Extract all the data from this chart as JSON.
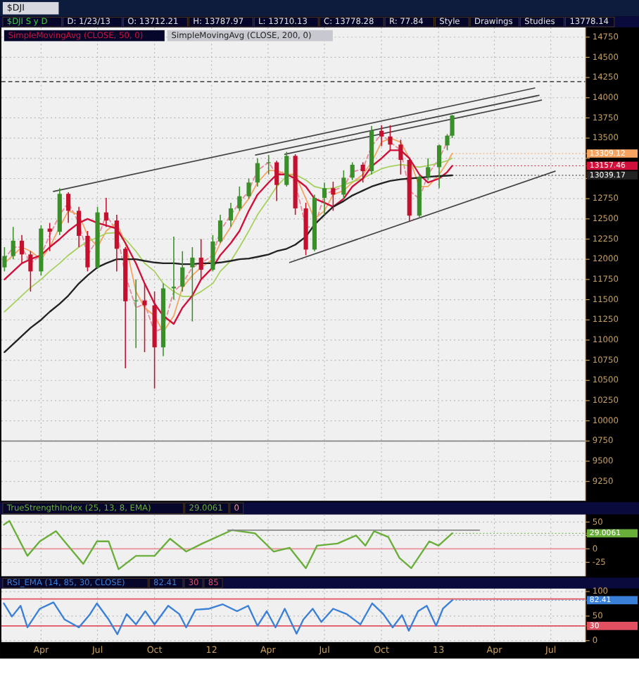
{
  "chart_data": [
    {
      "type": "candlestick",
      "title": "$DJI",
      "annotations": [
        "$DJI S y D",
        "D: 1/23/13",
        "O: 13712.21",
        "H: 13787.97",
        "L: 13710.13",
        "C: 13778.28",
        "R: 77.84",
        "Style",
        "Drawings",
        "Studies",
        "13778.14"
      ],
      "x": [
        "2011-02-01",
        "2011-02-15",
        "2011-03-01",
        "2011-03-15",
        "2011-04-01",
        "2011-04-15",
        "2011-05-01",
        "2011-05-15",
        "2011-06-01",
        "2011-06-15",
        "2011-07-01",
        "2011-07-15",
        "2011-08-01",
        "2011-08-15",
        "2011-09-01",
        "2011-09-15",
        "2011-10-01",
        "2011-10-15",
        "2011-11-01",
        "2011-11-15",
        "2011-12-01",
        "2011-12-15",
        "2012-01-03",
        "2012-01-15",
        "2012-02-01",
        "2012-02-15",
        "2012-03-01",
        "2012-03-15",
        "2012-04-02",
        "2012-04-15",
        "2012-05-01",
        "2012-05-15",
        "2012-06-01",
        "2012-06-15",
        "2012-07-01",
        "2012-07-15",
        "2012-08-01",
        "2012-08-15",
        "2012-09-01",
        "2012-09-15",
        "2012-10-01",
        "2012-10-15",
        "2012-11-01",
        "2012-11-15",
        "2012-12-01",
        "2012-12-15",
        "2013-01-02",
        "2013-01-15",
        "2013-01-23"
      ],
      "ohlc": [
        [
          11900,
          12150,
          11850,
          12040
        ],
        [
          12040,
          12400,
          12000,
          12230
        ],
        [
          12230,
          12300,
          11950,
          12060
        ],
        [
          12060,
          12100,
          11600,
          11850
        ],
        [
          11850,
          12420,
          11800,
          12380
        ],
        [
          12380,
          12450,
          12100,
          12340
        ],
        [
          12340,
          12880,
          12300,
          12810
        ],
        [
          12810,
          12830,
          12450,
          12600
        ],
        [
          12600,
          12650,
          12150,
          12290
        ],
        [
          12290,
          12350,
          11850,
          11900
        ],
        [
          11900,
          12650,
          11880,
          12580
        ],
        [
          12580,
          12760,
          12400,
          12480
        ],
        [
          12480,
          12550,
          11850,
          12130
        ],
        [
          12130,
          12150,
          10650,
          11480
        ],
        [
          11480,
          11750,
          10900,
          11490
        ],
        [
          11490,
          11700,
          10850,
          11430
        ],
        [
          11430,
          11600,
          10400,
          10910
        ],
        [
          10910,
          11700,
          10800,
          11640
        ],
        [
          11640,
          12280,
          11500,
          11660
        ],
        [
          11660,
          12100,
          11600,
          11900
        ],
        [
          11900,
          12150,
          11230,
          12020
        ],
        [
          12020,
          12250,
          11750,
          11870
        ],
        [
          11870,
          12300,
          11850,
          12220
        ],
        [
          12220,
          12550,
          12200,
          12480
        ],
        [
          12480,
          12700,
          12400,
          12630
        ],
        [
          12630,
          12900,
          12600,
          12780
        ],
        [
          12780,
          13000,
          12750,
          12950
        ],
        [
          12950,
          13250,
          12900,
          13190
        ],
        [
          13190,
          13290,
          13050,
          13200
        ],
        [
          13200,
          13220,
          12720,
          12920
        ],
        [
          12920,
          13330,
          12900,
          13280
        ],
        [
          13280,
          13300,
          12550,
          12630
        ],
        [
          12630,
          12700,
          12050,
          12120
        ],
        [
          12120,
          12800,
          12100,
          12760
        ],
        [
          12760,
          12950,
          12550,
          12880
        ],
        [
          12880,
          12960,
          12600,
          12800
        ],
        [
          12800,
          13100,
          12750,
          13010
        ],
        [
          13010,
          13200,
          12980,
          13170
        ],
        [
          13170,
          13200,
          12950,
          13090
        ],
        [
          13090,
          13650,
          13050,
          13590
        ],
        [
          13590,
          13660,
          13400,
          13520
        ],
        [
          13520,
          13660,
          13350,
          13420
        ],
        [
          13420,
          13480,
          13050,
          13230
        ],
        [
          13230,
          13260,
          12470,
          12540
        ],
        [
          12540,
          13050,
          12520,
          13020
        ],
        [
          13020,
          13250,
          12980,
          13140
        ],
        [
          13140,
          13420,
          12880,
          13410
        ],
        [
          13410,
          13550,
          13350,
          13530
        ],
        [
          13530,
          13788,
          13500,
          13780
        ]
      ],
      "colors": [
        "#3a8f2a",
        "#3a8f2a",
        "#c4102e",
        "#c4102e",
        "#3a8f2a",
        "#c4102e",
        "#3a8f2a",
        "#c4102e",
        "#c4102e",
        "#c4102e",
        "#3a8f2a",
        "#c4102e",
        "#c4102e",
        "#c4102e",
        "#3a8f2a",
        "#c4102e",
        "#c4102e",
        "#3a8f2a",
        "#3a8f2a",
        "#3a8f2a",
        "#3a8f2a",
        "#c4102e",
        "#3a8f2a",
        "#3a8f2a",
        "#3a8f2a",
        "#3a8f2a",
        "#3a8f2a",
        "#3a8f2a",
        "#3a8f2a",
        "#c4102e",
        "#3a8f2a",
        "#c4102e",
        "#c4102e",
        "#3a8f2a",
        "#3a8f2a",
        "#c4102e",
        "#3a8f2a",
        "#3a8f2a",
        "#c4102e",
        "#3a8f2a",
        "#c4102e",
        "#c4102e",
        "#c4102e",
        "#c4102e",
        "#3a8f2a",
        "#3a8f2a",
        "#3a8f2a",
        "#3a8f2a",
        "#3a8f2a"
      ],
      "series": [
        {
          "type": "line",
          "color": "#e88a9a",
          "line_style": "dashed",
          "values": [
            12000,
            12150,
            12150,
            11950,
            12050,
            12300,
            12550,
            12700,
            12450,
            12050,
            12250,
            12550,
            12350,
            11800,
            11400,
            11450,
            11100,
            11150,
            11600,
            11700,
            11900,
            11950,
            12050,
            12350,
            12550,
            12700,
            12850,
            13100,
            13200,
            13050,
            13100,
            12950,
            12400,
            12400,
            12800,
            12850,
            12900,
            13080,
            13120,
            13400,
            13550,
            13450,
            13350,
            12850,
            12750,
            13050,
            13250,
            13450,
            13600
          ]
        },
        {
          "type": "line",
          "color": "#f4a460",
          "values": [
            11950,
            12050,
            12150,
            12100,
            12000,
            12150,
            12400,
            12600,
            12550,
            12300,
            12150,
            12350,
            12450,
            12200,
            11600,
            11400,
            11300,
            11100,
            11300,
            11650,
            11800,
            11900,
            12000,
            12200,
            12400,
            12600,
            12750,
            12950,
            13100,
            13100,
            13050,
            13050,
            12750,
            12500,
            12600,
            12800,
            12850,
            12950,
            13050,
            13200,
            13450,
            13500,
            13450,
            13250,
            12900,
            12900,
            13050,
            13200,
            13309.12
          ],
          "value_labels": [
            null,
            null,
            null,
            null,
            null,
            null,
            null,
            null,
            null,
            null,
            null,
            null,
            null,
            null,
            null,
            null,
            null,
            null,
            null,
            null,
            null,
            null,
            null,
            null,
            null,
            null,
            null,
            null,
            null,
            null,
            null,
            null,
            null,
            null,
            null,
            null,
            null,
            null,
            null,
            null,
            null,
            null,
            null,
            null,
            null,
            null,
            null,
            null,
            "13309.12"
          ]
        },
        {
          "type": "line",
          "color": "#a6d05c",
          "values": [
            11350,
            11450,
            11550,
            11650,
            11750,
            11850,
            11950,
            12050,
            12150,
            12220,
            12270,
            12320,
            12330,
            12250,
            12100,
            11950,
            11850,
            11700,
            11600,
            11540,
            11540,
            11600,
            11700,
            11850,
            11980,
            12150,
            12350,
            12550,
            12750,
            12900,
            13030,
            13050,
            12980,
            12900,
            12870,
            12880,
            12920,
            12960,
            13000,
            13060,
            13120,
            13150,
            13170,
            13160,
            13140,
            13160,
            13190,
            13220,
            13250
          ]
        },
        {
          "type": "line",
          "name": "SimpleMovingAvg (CLOSE, 50, 0)",
          "color": "#d0103a",
          "values": [
            11750,
            11850,
            11950,
            12000,
            12050,
            12150,
            12250,
            12350,
            12450,
            12500,
            12450,
            12420,
            12380,
            12200,
            11950,
            11700,
            11450,
            11300,
            11200,
            11400,
            11550,
            11750,
            11900,
            12050,
            12200,
            12350,
            12600,
            12800,
            12950,
            13050,
            13050,
            13000,
            12900,
            12750,
            12700,
            12650,
            12750,
            12900,
            13000,
            13150,
            13250,
            13350,
            13350,
            13250,
            13050,
            12950,
            13000,
            13080,
            13157.46
          ],
          "value_labels": [
            null,
            null,
            null,
            null,
            null,
            null,
            null,
            null,
            null,
            null,
            null,
            null,
            null,
            null,
            null,
            null,
            null,
            null,
            null,
            null,
            null,
            null,
            null,
            null,
            null,
            null,
            null,
            null,
            null,
            null,
            null,
            null,
            null,
            null,
            null,
            null,
            null,
            null,
            null,
            null,
            null,
            null,
            null,
            null,
            null,
            null,
            null,
            null,
            "13157.46"
          ]
        },
        {
          "type": "line",
          "name": "SimpleMovingAvg (CLOSE, 200, 0)",
          "color": "#222222",
          "values": [
            10850,
            10950,
            11050,
            11150,
            11250,
            11350,
            11450,
            11550,
            11700,
            11800,
            11900,
            11950,
            12000,
            12000,
            12000,
            11980,
            11960,
            11950,
            11950,
            11940,
            11940,
            11950,
            11950,
            11960,
            11980,
            12000,
            12010,
            12030,
            12060,
            12100,
            12130,
            12180,
            12280,
            12430,
            12550,
            12650,
            12720,
            12790,
            12850,
            12900,
            12940,
            12970,
            12990,
            13000,
            13010,
            13020,
            13030,
            13035,
            13039.17
          ],
          "value_labels": [
            null,
            null,
            null,
            null,
            null,
            null,
            null,
            null,
            null,
            null,
            null,
            null,
            null,
            null,
            null,
            null,
            null,
            null,
            null,
            null,
            null,
            null,
            null,
            null,
            null,
            null,
            null,
            null,
            null,
            null,
            null,
            null,
            null,
            null,
            null,
            null,
            null,
            null,
            null,
            null,
            null,
            null,
            null,
            null,
            null,
            null,
            null,
            null,
            "13039.17"
          ]
        },
        {
          "type": "line",
          "color": "#444444",
          "x": [
            "2011-04-21",
            "2013-06-05"
          ],
          "values": [
            12840,
            14120
          ]
        },
        {
          "type": "line",
          "color": "#444444",
          "x": [
            "2012-03-12",
            "2013-06-12"
          ],
          "values": [
            13290,
            14030
          ]
        },
        {
          "type": "line",
          "color": "#444444",
          "x": [
            "2012-04-28",
            "2013-06-16"
          ],
          "values": [
            13300,
            13970
          ]
        },
        {
          "type": "line",
          "color": "#444444",
          "x": [
            "2012-05-06",
            "2013-07-08"
          ],
          "values": [
            11960,
            13090
          ]
        }
      ],
      "ref_lines": [
        {
          "axis": "y",
          "value": 14200,
          "color": "#555555",
          "line_style": "dashed"
        },
        {
          "axis": "y",
          "value": 9750,
          "color": "#888888"
        }
      ],
      "xlim": [
        "2011-01-27",
        "2013-08-26"
      ],
      "xticks": [
        "2011-04-01",
        "2011-07-01",
        "2011-10-01",
        "2012-01-01",
        "2012-04-01",
        "2012-07-01",
        "2012-10-01",
        "2013-01-01",
        "2013-04-01",
        "2013-07-01"
      ],
      "ylim": [
        9010,
        14870
      ],
      "yticks": [
        9250,
        9500,
        9750,
        10000,
        10250,
        10500,
        10750,
        11000,
        11250,
        11500,
        11750,
        12000,
        12250,
        12500,
        12750,
        {
          "value": 13000,
          "label": null
        },
        {
          "value": 13250,
          "label": null
        },
        13500,
        13750,
        14000,
        14250,
        14500,
        14750
      ],
      "grid": true,
      "legend": "top left",
      "tick_labels": "y"
    },
    {
      "type": "line",
      "x": [
        "2011-01-31",
        "2011-02-09",
        "2011-03-10",
        "2011-03-30",
        "2011-04-25",
        "2011-06-08",
        "2011-06-30",
        "2011-07-19",
        "2011-08-04",
        "2011-09-01",
        "2011-10-01",
        "2011-10-26",
        "2011-11-21",
        "2011-12-17",
        "2012-02-03",
        "2012-03-11",
        "2012-04-10",
        "2012-05-06",
        "2012-06-01",
        "2012-06-19",
        "2012-07-22",
        "2012-08-21",
        "2012-09-05",
        "2012-09-19",
        "2012-10-12",
        "2012-10-30",
        "2012-11-18",
        "2012-12-17",
        "2013-01-01",
        "2013-01-23"
      ],
      "series": [
        {
          "name": "TrueStrengthIndex (25, 13, 8, EMA)",
          "color": "#6aae3a",
          "values": [
            45,
            52,
            -13,
            14,
            33,
            -28,
            14,
            14,
            -38,
            -13,
            -13,
            19,
            -5,
            10,
            35,
            29,
            -5,
            2,
            -36,
            6,
            10,
            25,
            6,
            33,
            22,
            -17,
            -36,
            14,
            6,
            29.0061
          ],
          "value_labels": [
            null,
            null,
            null,
            null,
            null,
            null,
            null,
            null,
            null,
            null,
            null,
            null,
            null,
            null,
            null,
            null,
            null,
            null,
            null,
            null,
            null,
            null,
            null,
            null,
            null,
            null,
            null,
            null,
            null,
            "29.0061"
          ]
        },
        {
          "color": "#888888",
          "x": [
            "2012-01-27",
            "2013-03-08"
          ],
          "values": [
            35,
            35
          ]
        }
      ],
      "ref_lines": [
        {
          "axis": "y",
          "value": 0,
          "label": "0",
          "color": "#e8909a"
        }
      ],
      "xlim": [
        "2011-01-27",
        "2013-08-26"
      ],
      "xticks": [
        "2011-04-01",
        "2011-07-01",
        "2011-10-01",
        "2012-01-01",
        "2012-04-01",
        "2012-07-01",
        "2012-10-01",
        "2013-01-01",
        "2013-04-01",
        "2013-07-01"
      ],
      "ylim": [
        -51,
        64
      ],
      "yticks": [
        -25,
        0,
        {
          "value": 25,
          "label": null
        },
        50
      ],
      "annotations": [
        "29.0061"
      ],
      "grid": true,
      "legend": "top",
      "tick_labels": "y"
    },
    {
      "type": "line",
      "x": [
        "2011-01-31",
        "2011-02-13",
        "2011-02-27",
        "2011-03-10",
        "2011-03-30",
        "2011-04-21",
        "2011-05-09",
        "2011-06-01",
        "2011-06-19",
        "2011-06-30",
        "2011-07-19",
        "2011-08-02",
        "2011-08-17",
        "2011-09-01",
        "2011-09-16",
        "2011-10-01",
        "2011-10-23",
        "2011-11-10",
        "2011-11-21",
        "2011-12-06",
        "2011-12-28",
        "2012-01-19",
        "2012-02-11",
        "2012-02-29",
        "2012-03-15",
        "2012-03-30",
        "2012-04-13",
        "2012-04-28",
        "2012-05-17",
        "2012-05-28",
        "2012-06-12",
        "2012-06-26",
        "2012-07-15",
        "2012-08-06",
        "2012-08-28",
        "2012-09-16",
        "2012-10-04",
        "2012-10-19",
        "2012-11-03",
        "2012-11-14",
        "2012-11-29",
        "2012-12-13",
        "2012-12-28",
        "2013-01-08",
        "2013-01-23"
      ],
      "series": [
        {
          "name": "RSI_EMA (14, 85, 30, CLOSE)",
          "color": "#3a7fd8",
          "values": [
            76,
            49,
            71,
            27,
            65,
            78,
            43,
            27,
            54,
            76,
            43,
            13,
            54,
            33,
            60,
            33,
            71,
            54,
            27,
            63,
            65,
            74,
            60,
            71,
            30,
            60,
            27,
            65,
            14,
            43,
            65,
            38,
            65,
            54,
            33,
            76,
            54,
            27,
            52,
            20,
            60,
            71,
            30,
            65,
            82.41
          ],
          "value_labels": [
            null,
            null,
            null,
            null,
            null,
            null,
            null,
            null,
            null,
            null,
            null,
            null,
            null,
            null,
            null,
            null,
            null,
            null,
            null,
            null,
            null,
            null,
            null,
            null,
            null,
            null,
            null,
            null,
            null,
            null,
            null,
            null,
            null,
            null,
            null,
            null,
            null,
            null,
            null,
            null,
            null,
            null,
            null,
            null,
            "82.41"
          ]
        }
      ],
      "annotations": [
        "82.41",
        {
          "text": "30",
          "x": "2013-01-23",
          "y": 30
        }
      ],
      "ref_lines": [
        {
          "axis": "y",
          "value": 30,
          "label": "30",
          "color": "#e05060"
        },
        {
          "axis": "y",
          "value": 85,
          "label": "85",
          "color": "#e05060"
        }
      ],
      "xlim": [
        "2011-01-27",
        "2013-08-26"
      ],
      "xticks": [
        {
          "value": "2011-04-01",
          "label": "Apr"
        },
        {
          "value": "2011-07-01",
          "label": "Jul"
        },
        {
          "value": "2011-10-01",
          "label": "Oct"
        },
        {
          "value": "2012-01-01",
          "label": "12"
        },
        {
          "value": "2012-04-01",
          "label": "Apr"
        },
        {
          "value": "2012-07-01",
          "label": "Jul"
        },
        {
          "value": "2012-10-01",
          "label": "Oct"
        },
        {
          "value": "2013-01-01",
          "label": "13"
        },
        {
          "value": "2013-04-01",
          "label": "Apr"
        },
        {
          "value": "2013-07-01",
          "label": "Jul"
        }
      ],
      "ylim": [
        -3,
        106
      ],
      "yticks": [
        0,
        50,
        100
      ],
      "grid": true,
      "legend": "top"
    }
  ]
}
